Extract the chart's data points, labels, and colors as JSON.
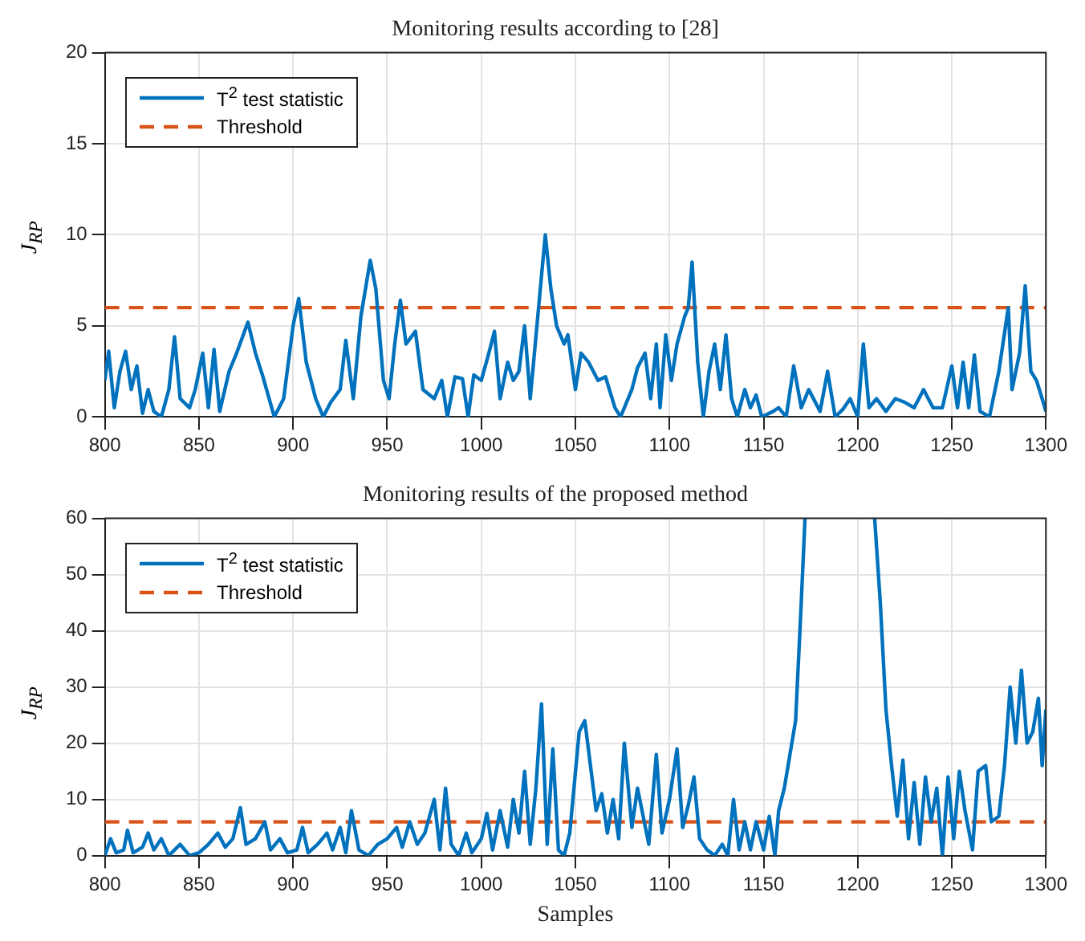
{
  "chart_data": [
    {
      "type": "line",
      "title": "Monitoring results according to [28]",
      "ylabel": "J$_{RP}$",
      "xlim": [
        800,
        1300
      ],
      "xticks": [
        800,
        850,
        900,
        950,
        1000,
        1050,
        1100,
        1150,
        1200,
        1250,
        1300
      ],
      "ylim": [
        0,
        20
      ],
      "yticks": [
        0,
        5,
        10,
        15,
        20
      ],
      "grid": true,
      "legend": "top left",
      "marker": "none",
      "series": [
        {
          "name": "T$^{2}$ test statistic",
          "color": "#0072bd",
          "line_style": "solid",
          "x": [
            800,
            802,
            805,
            808,
            811,
            814,
            817,
            820,
            823,
            826,
            830,
            834,
            837,
            840,
            845,
            848,
            852,
            855,
            858,
            861,
            866,
            870,
            876,
            880,
            884,
            890,
            895,
            900,
            903,
            907,
            912,
            916,
            920,
            925,
            928,
            932,
            936,
            941,
            944,
            948,
            951,
            954,
            957,
            960,
            965,
            969,
            975,
            979,
            982,
            986,
            990,
            993,
            996,
            1000,
            1004,
            1007,
            1010,
            1014,
            1017,
            1020,
            1023,
            1026,
            1030,
            1034,
            1037,
            1040,
            1044,
            1046,
            1050,
            1053,
            1057,
            1062,
            1066,
            1071,
            1074,
            1080,
            1083,
            1087,
            1090,
            1093,
            1095,
            1098,
            1101,
            1104,
            1108,
            1110,
            1112,
            1115,
            1118,
            1121,
            1124,
            1127,
            1130,
            1133,
            1136,
            1140,
            1143,
            1146,
            1149,
            1155,
            1158,
            1162,
            1166,
            1170,
            1174,
            1180,
            1184,
            1188,
            1192,
            1196,
            1200,
            1203,
            1206,
            1210,
            1215,
            1220,
            1225,
            1230,
            1235,
            1240,
            1245,
            1250,
            1253,
            1256,
            1259,
            1262,
            1265,
            1270,
            1275,
            1280,
            1282,
            1286,
            1289,
            1292,
            1295,
            1298,
            1300
          ],
          "values": [
            2,
            3.6,
            0.5,
            2.5,
            3.6,
            1.5,
            2.8,
            0.2,
            1.5,
            0.3,
            0,
            1.5,
            4.4,
            1,
            0.5,
            1.5,
            3.5,
            0.5,
            3.7,
            0.3,
            2.5,
            3.5,
            5.2,
            3.5,
            2.2,
            0,
            1,
            5,
            6.5,
            3,
            1,
            0,
            0.8,
            1.5,
            4.2,
            1,
            5.5,
            8.6,
            7,
            2,
            1,
            4,
            6.4,
            4,
            4.7,
            1.5,
            1,
            2,
            0,
            2.2,
            2.1,
            0,
            2.3,
            2,
            3.5,
            4.7,
            1,
            3,
            2,
            2.5,
            5,
            1,
            5.5,
            10,
            7,
            5,
            4,
            4.5,
            1.5,
            3.5,
            3,
            2,
            2.2,
            0.5,
            0,
            1.5,
            2.7,
            3.5,
            1,
            4,
            0.5,
            4.5,
            2,
            4,
            5.5,
            6,
            8.5,
            3,
            0,
            2.5,
            4,
            1.5,
            4.5,
            1,
            0,
            1.5,
            0.5,
            1.2,
            0,
            0.3,
            0.5,
            0,
            2.8,
            0.5,
            1.5,
            0.3,
            2.5,
            0,
            0.4,
            1,
            0,
            4,
            0.5,
            1,
            0.3,
            1,
            0.8,
            0.5,
            1.5,
            0.5,
            0.5,
            2.8,
            0.5,
            3,
            0.5,
            3.4,
            0.3,
            0,
            2.5,
            6,
            1.5,
            3.5,
            7.2,
            2.5,
            2,
            1,
            0.3
          ]
        },
        {
          "name": "Threshold",
          "color": "#d95319",
          "line_style": "dashed",
          "x": [
            800,
            1300
          ],
          "values": [
            6,
            6
          ]
        }
      ]
    },
    {
      "type": "line",
      "title": "Monitoring results of the proposed method",
      "xlabel": "Samples",
      "ylabel": "J$_{RP}$",
      "xlim": [
        800,
        1300
      ],
      "xticks": [
        800,
        850,
        900,
        950,
        1000,
        1050,
        1100,
        1150,
        1200,
        1250,
        1300
      ],
      "ylim": [
        0,
        60
      ],
      "yticks": [
        0,
        10,
        20,
        30,
        40,
        50,
        60
      ],
      "grid": true,
      "legend": "top left",
      "marker": "none",
      "series": [
        {
          "name": "T$^{2}$ test statistic",
          "color": "#0072bd",
          "line_style": "solid",
          "x": [
            800,
            803,
            806,
            810,
            812,
            815,
            820,
            823,
            826,
            830,
            834,
            840,
            845,
            850,
            855,
            860,
            864,
            868,
            872,
            875,
            880,
            885,
            888,
            893,
            897,
            902,
            905,
            908,
            913,
            918,
            921,
            925,
            928,
            931,
            935,
            940,
            945,
            950,
            955,
            958,
            962,
            966,
            970,
            975,
            978,
            981,
            984,
            988,
            992,
            995,
            1000,
            1003,
            1006,
            1010,
            1014,
            1017,
            1020,
            1023,
            1026,
            1029,
            1032,
            1035,
            1038,
            1041,
            1044,
            1047,
            1052,
            1055,
            1058,
            1061,
            1064,
            1067,
            1070,
            1073,
            1076,
            1080,
            1083,
            1086,
            1089,
            1093,
            1096,
            1100,
            1104,
            1107,
            1110,
            1113,
            1116,
            1120,
            1124,
            1128,
            1131,
            1134,
            1137,
            1140,
            1143,
            1146,
            1150,
            1153,
            1156,
            1158,
            1161,
            1164,
            1167,
            1170,
            1172,
            1190,
            1209,
            1212,
            1215,
            1218,
            1221,
            1224,
            1227,
            1230,
            1233,
            1236,
            1239,
            1242,
            1245,
            1248,
            1251,
            1254,
            1257,
            1261,
            1264,
            1268,
            1271,
            1275,
            1278,
            1281,
            1284,
            1287,
            1290,
            1293,
            1296,
            1298,
            1300
          ],
          "values": [
            0,
            3,
            0.5,
            1,
            4.5,
            0.5,
            1.5,
            4,
            1,
            3,
            0,
            2,
            0,
            0.5,
            2,
            4,
            1.5,
            3,
            8.5,
            2,
            3,
            6,
            1,
            3,
            0.5,
            1,
            5,
            0.5,
            2,
            4,
            1,
            5,
            0.5,
            8,
            1,
            0,
            2,
            3,
            5,
            1.5,
            6,
            2,
            4,
            10,
            1,
            12,
            2,
            0,
            4,
            0.5,
            3,
            7.5,
            1,
            8,
            1.5,
            10,
            4,
            15,
            2,
            12,
            27,
            2,
            19,
            1,
            0,
            4,
            22,
            24,
            16,
            8,
            11,
            4,
            10,
            3,
            20,
            5,
            12,
            7,
            2,
            18,
            4,
            10,
            19,
            5,
            9,
            14,
            3,
            1,
            0,
            2,
            0,
            10,
            1,
            6,
            1,
            6,
            1,
            7,
            0,
            8,
            12,
            18,
            24,
            45,
            60,
            null,
            60,
            45,
            26,
            16,
            7,
            17,
            3,
            13,
            2,
            14,
            6,
            12,
            0,
            14,
            3,
            15,
            8,
            1,
            15,
            16,
            6,
            7,
            16,
            30,
            20,
            33,
            20,
            22,
            28,
            16,
            26
          ]
        },
        {
          "name": "Threshold",
          "color": "#d95319",
          "line_style": "dashed",
          "x": [
            800,
            1300
          ],
          "values": [
            6,
            6
          ]
        }
      ]
    }
  ]
}
